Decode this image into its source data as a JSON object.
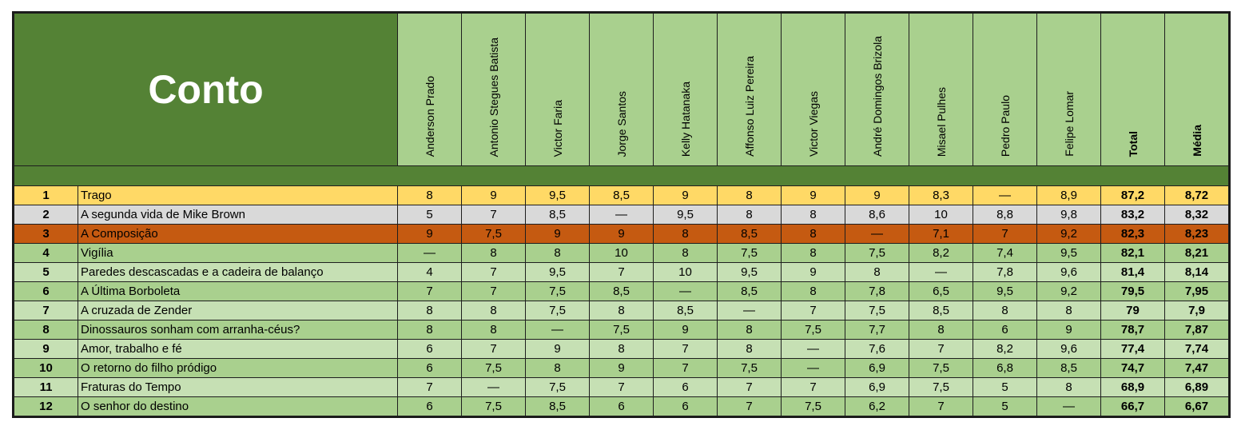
{
  "title": "Conto",
  "judges": [
    "Anderson Prado",
    "Antonio Stegues Batista",
    "Victor Faria",
    "Jorge Santos",
    "Kelly Hatanaka",
    "Affonso Luiz Pereira",
    "Victor Viegas",
    "André Domingos Brizola",
    "Misael Pulhes",
    "Pedro Paulo",
    "Felipe Lomar"
  ],
  "total_label": "Total",
  "media_label": "Média",
  "rows": [
    {
      "rank": "1",
      "title": "Trago",
      "scores": [
        "8",
        "9",
        "9,5",
        "8,5",
        "9",
        "8",
        "9",
        "9",
        "8,3",
        "—",
        "8,9"
      ],
      "total": "87,2",
      "media": "8,72",
      "style": "gold"
    },
    {
      "rank": "2",
      "title": "A segunda vida de Mike Brown",
      "scores": [
        "5",
        "7",
        "8,5",
        "—",
        "9,5",
        "8",
        "8",
        "8,6",
        "10",
        "8,8",
        "9,8"
      ],
      "total": "83,2",
      "media": "8,32",
      "style": "silver"
    },
    {
      "rank": "3",
      "title": "A Composição",
      "scores": [
        "9",
        "7,5",
        "9",
        "9",
        "8",
        "8,5",
        "8",
        "—",
        "7,1",
        "7",
        "9,2"
      ],
      "total": "82,3",
      "media": "8,23",
      "style": "bronze"
    },
    {
      "rank": "4",
      "title": "Vigília",
      "scores": [
        "—",
        "8",
        "8",
        "10",
        "8",
        "7,5",
        "8",
        "7,5",
        "8,2",
        "7,4",
        "9,5"
      ],
      "total": "82,1",
      "media": "8,21",
      "style": "g1"
    },
    {
      "rank": "5",
      "title": "Paredes descascadas e a cadeira de balanço",
      "scores": [
        "4",
        "7",
        "9,5",
        "7",
        "10",
        "9,5",
        "9",
        "8",
        "—",
        "7,8",
        "9,6"
      ],
      "total": "81,4",
      "media": "8,14",
      "style": "g2"
    },
    {
      "rank": "6",
      "title": "A Última Borboleta",
      "scores": [
        "7",
        "7",
        "7,5",
        "8,5",
        "—",
        "8,5",
        "8",
        "7,8",
        "6,5",
        "9,5",
        "9,2"
      ],
      "total": "79,5",
      "media": "7,95",
      "style": "g1"
    },
    {
      "rank": "7",
      "title": "A cruzada de Zender",
      "scores": [
        "8",
        "8",
        "7,5",
        "8",
        "8,5",
        "—",
        "7",
        "7,5",
        "8,5",
        "8",
        "8"
      ],
      "total": "79",
      "media": "7,9",
      "style": "g2"
    },
    {
      "rank": "8",
      "title": "Dinossauros sonham com arranha-céus?",
      "scores": [
        "8",
        "8",
        "—",
        "7,5",
        "9",
        "8",
        "7,5",
        "7,7",
        "8",
        "6",
        "9"
      ],
      "total": "78,7",
      "media": "7,87",
      "style": "g1"
    },
    {
      "rank": "9",
      "title": "Amor, trabalho e fé",
      "scores": [
        "6",
        "7",
        "9",
        "8",
        "7",
        "8",
        "—",
        "7,6",
        "7",
        "8,2",
        "9,6"
      ],
      "total": "77,4",
      "media": "7,74",
      "style": "g2"
    },
    {
      "rank": "10",
      "title": "O retorno do filho pródigo",
      "scores": [
        "6",
        "7,5",
        "8",
        "9",
        "7",
        "7,5",
        "—",
        "6,9",
        "7,5",
        "6,8",
        "8,5"
      ],
      "total": "74,7",
      "media": "7,47",
      "style": "g1"
    },
    {
      "rank": "11",
      "title": "Fraturas do Tempo",
      "scores": [
        "7",
        "—",
        "7,5",
        "7",
        "6",
        "7",
        "7",
        "6,9",
        "7,5",
        "5",
        "8"
      ],
      "total": "68,9",
      "media": "6,89",
      "style": "g2"
    },
    {
      "rank": "12",
      "title": "O senhor do destino",
      "scores": [
        "6",
        "7,5",
        "8,5",
        "6",
        "6",
        "7",
        "7,5",
        "6,2",
        "7",
        "5",
        "—"
      ],
      "total": "66,7",
      "media": "6,67",
      "style": "g1"
    }
  ]
}
